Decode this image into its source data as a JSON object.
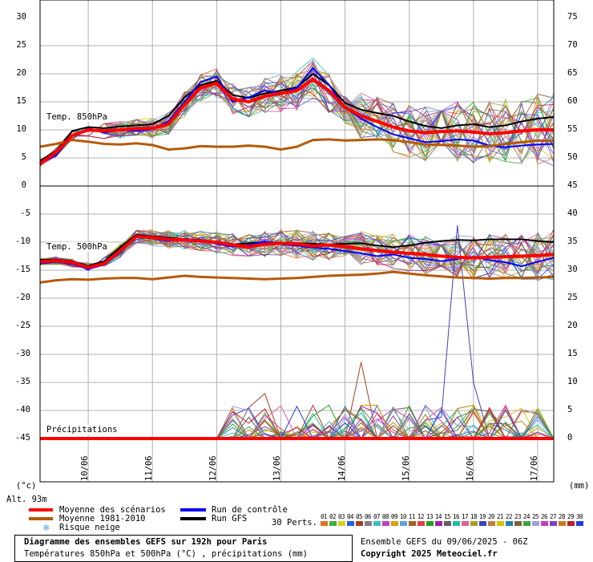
{
  "chart_data": [
    {
      "type": "line",
      "panel": "temp850",
      "label": "Temp. 850hPa",
      "left_ticks": [
        "30",
        "25",
        "20",
        "15",
        "10",
        "5",
        "0"
      ],
      "right_ticks": [
        "75",
        "70",
        "65",
        "60",
        "55",
        "50",
        "45"
      ],
      "x": [
        0,
        6,
        12,
        18,
        24,
        30,
        36,
        42,
        48,
        54,
        60,
        66,
        72,
        78,
        84,
        90,
        96,
        102,
        108,
        114,
        120,
        126,
        132,
        138,
        144,
        150,
        156,
        162,
        168,
        174,
        180,
        186,
        192
      ],
      "series": [
        {
          "name": "Moyenne des scénarios",
          "color": "#ff0000",
          "values": [
            4,
            6,
            9,
            10,
            9.8,
            10,
            10.2,
            10.3,
            11,
            14.5,
            17.5,
            18.3,
            15.5,
            15,
            16,
            16.5,
            17,
            19,
            17,
            14,
            12.5,
            11.5,
            10.5,
            9.8,
            9.5,
            9.7,
            9.8,
            9.6,
            9.3,
            9.5,
            9.8,
            10,
            10
          ]
        },
        {
          "name": "Moyenne 1981-2010",
          "color": "#b55a0a",
          "values": [
            7,
            7.5,
            8.2,
            7.9,
            7.5,
            7.4,
            7.6,
            7.3,
            6.5,
            6.7,
            7.1,
            7.0,
            7.0,
            7.2,
            7.0,
            6.5,
            7.0,
            8.2,
            8.3,
            8.1,
            8.2,
            8.3,
            8.2,
            7.8,
            7.4,
            7.3,
            7.2,
            7.0,
            7.1,
            7.5,
            7.8,
            8.1,
            8.0
          ]
        },
        {
          "name": "Run de contrôle",
          "color": "#0000ff",
          "values": [
            4,
            5.5,
            9,
            10.2,
            9.5,
            10,
            9.8,
            10.1,
            11.5,
            15,
            18.5,
            19.5,
            15,
            15.8,
            17,
            16.6,
            17.5,
            21,
            18,
            14,
            12,
            10.5,
            9.2,
            8.5,
            7.8,
            8,
            8.3,
            8.1,
            7.2,
            6.9,
            7.2,
            7.4,
            7.5
          ]
        },
        {
          "name": "Run GFS",
          "color": "#000000",
          "values": [
            4.5,
            6.2,
            9.8,
            10.5,
            10.3,
            10.6,
            10.8,
            11,
            12.5,
            15.8,
            18,
            18.7,
            16.2,
            15.7,
            16.5,
            17,
            17.6,
            20,
            18,
            14.8,
            13.6,
            13,
            12.5,
            11.5,
            10.7,
            10.3,
            10.8,
            11,
            10.5,
            10.8,
            11.5,
            12,
            12.3
          ]
        }
      ]
    },
    {
      "type": "line",
      "panel": "temp500",
      "label": "Temp. 500hPa",
      "left_ticks": [
        "-5",
        "-10",
        "-15",
        "-20",
        "-25",
        "-30",
        "-35",
        "-40",
        "-45"
      ],
      "right_ticks": [
        "40",
        "35",
        "30",
        "25",
        "20",
        "15",
        "10",
        "5",
        "0"
      ],
      "x": [
        0,
        6,
        12,
        18,
        24,
        30,
        36,
        42,
        48,
        54,
        60,
        66,
        72,
        78,
        84,
        90,
        96,
        102,
        108,
        114,
        120,
        126,
        132,
        138,
        144,
        150,
        156,
        162,
        168,
        174,
        180,
        186,
        192
      ],
      "series": [
        {
          "name": "Moyenne des scénarios",
          "color": "#ff0000",
          "values": [
            -13.5,
            -13.3,
            -13.6,
            -14.5,
            -13.8,
            -11.5,
            -9,
            -9.2,
            -9.5,
            -9.6,
            -9.8,
            -10,
            -10.5,
            -10.8,
            -10.4,
            -10.2,
            -10.3,
            -10.7,
            -10.5,
            -10.8,
            -11.2,
            -11.5,
            -11.8,
            -12,
            -12.2,
            -12.5,
            -12.7,
            -12.8,
            -12.7,
            -12.6,
            -12.5,
            -12.4,
            -12.2
          ]
        },
        {
          "name": "Moyenne 1981-2010",
          "color": "#b55a0a",
          "values": [
            -17.2,
            -16.8,
            -16.6,
            -16.7,
            -16.5,
            -16.4,
            -16.4,
            -16.6,
            -16.3,
            -16.0,
            -16.2,
            -16.3,
            -16.4,
            -16.5,
            -16.6,
            -16.5,
            -16.4,
            -16.2,
            -16.0,
            -15.9,
            -15.8,
            -15.6,
            -15.3,
            -15.6,
            -15.9,
            -16.1,
            -16.3,
            -16.4,
            -16.5,
            -16.4,
            -16.4,
            -16.3,
            -16.2
          ]
        },
        {
          "name": "Run de contrôle",
          "color": "#0000ff",
          "values": [
            -13.8,
            -13.5,
            -13.9,
            -14.8,
            -14,
            -11.8,
            -8.8,
            -9.3,
            -9.8,
            -9.4,
            -9.7,
            -10.3,
            -10.8,
            -10.5,
            -9.9,
            -10.4,
            -10.6,
            -11,
            -11.2,
            -11.6,
            -12,
            -12.5,
            -12.2,
            -12.8,
            -13,
            -13.4,
            -13,
            -12.6,
            -13.2,
            -13.6,
            -14.3,
            -13.5,
            -12.8
          ]
        },
        {
          "name": "Run GFS",
          "color": "#000000",
          "values": [
            -13.2,
            -13.1,
            -13.4,
            -14.2,
            -13.4,
            -10.9,
            -8.7,
            -9.0,
            -9.2,
            -9.5,
            -9.6,
            -10,
            -10.4,
            -10.2,
            -10.0,
            -10.1,
            -10.2,
            -10.3,
            -10.4,
            -10.3,
            -10.2,
            -10.6,
            -10.9,
            -10.6,
            -10.1,
            -9.8,
            -9.6,
            -9.7,
            -9.5,
            -9.5,
            -9.5,
            -9.8,
            -10
          ]
        }
      ]
    },
    {
      "type": "line",
      "panel": "precip",
      "label": "Précipitations",
      "x": [
        0,
        6,
        12,
        18,
        24,
        30,
        36,
        42,
        48,
        54,
        60,
        66,
        72,
        78,
        84,
        90,
        96,
        102,
        108,
        114,
        120,
        126,
        132,
        138,
        144,
        150,
        156,
        162,
        168,
        174,
        180,
        186,
        192
      ],
      "series": [
        {
          "name": "Moyenne des scénarios",
          "color": "#ff0000",
          "values": [
            0,
            0,
            0,
            0,
            0,
            0,
            0,
            0,
            0,
            0,
            0,
            0,
            0,
            0,
            0,
            0,
            0,
            0,
            0,
            0,
            0,
            0,
            0,
            0,
            0,
            0,
            0,
            0,
            0,
            0,
            0,
            0,
            0
          ]
        }
      ]
    }
  ],
  "x_ticks": [
    "10/06",
    "11/06",
    "12/06",
    "13/06",
    "14/06",
    "15/06",
    "16/06",
    "17/06"
  ],
  "left_unit": "(°c)",
  "right_unit": "(mm)",
  "alt": "Alt. 93m",
  "legend": {
    "mean": "Moyenne des scénarios",
    "clim": "Moyenne 1981-2010",
    "snow": "Risque neige",
    "control": "Run de contrôle",
    "gfs": "Run GFS",
    "perts_label": "30 Perts.",
    "pert_numbers": [
      "01",
      "02",
      "03",
      "04",
      "05",
      "06",
      "07",
      "08",
      "09",
      "10",
      "11",
      "12",
      "13",
      "14",
      "15",
      "16",
      "17",
      "18",
      "19",
      "20",
      "21",
      "22",
      "23",
      "24",
      "25",
      "26",
      "27",
      "28",
      "29",
      "30"
    ],
    "pert_colors": [
      "#e07020",
      "#40b040",
      "#d0d020",
      "#2060e0",
      "#a04020",
      "#808080",
      "#40c0c0",
      "#c040c0",
      "#e0a000",
      "#60a0e0",
      "#a06020",
      "#e04040",
      "#20a020",
      "#a020a0",
      "#606060",
      "#20c0a0",
      "#e060a0",
      "#a0a020",
      "#4040c0",
      "#c08040",
      "#e0c000",
      "#2080a0",
      "#806040",
      "#40a040",
      "#a0a0e0",
      "#c040c0",
      "#8040c0",
      "#c08020",
      "#c02020",
      "#2040e0"
    ]
  },
  "footer": {
    "title": "Diagramme des ensembles GEFS sur 192h pour Paris",
    "subtitle": "Températures 850hPa et 500hPa (°C) , précipitations (mm)",
    "ensemble": "Ensemble GEFS du 09/06/2025 - 06Z",
    "copyright": "Copyright 2025 Meteociel.fr"
  },
  "colors": {
    "mean": "#ff0000",
    "clim": "#b55a0a",
    "control": "#0000ff",
    "gfs": "#000000",
    "grid": "#b0b0b0"
  }
}
